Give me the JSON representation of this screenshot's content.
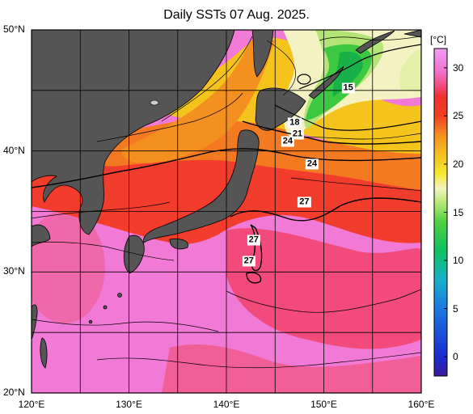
{
  "title": "Daily SSTs 07 Aug. 2025.",
  "map": {
    "lat_range": [
      20,
      50
    ],
    "lon_range": [
      120,
      160
    ],
    "lat_labels": [
      {
        "lat": 50,
        "text": "50°N"
      },
      {
        "lat": 40,
        "text": "40°N"
      },
      {
        "lat": 30,
        "text": "30°N"
      },
      {
        "lat": 20,
        "text": "20°N"
      }
    ],
    "lon_labels": [
      {
        "lon": 120,
        "text": "120°E"
      },
      {
        "lon": 130,
        "text": "130°E"
      },
      {
        "lon": 140,
        "text": "140°E"
      },
      {
        "lon": 150,
        "text": "150°E"
      },
      {
        "lon": 160,
        "text": "160°E"
      }
    ],
    "land_color": "#555555",
    "contour_labels": [
      {
        "text": "15",
        "lon": 152.5,
        "lat": 45.2
      },
      {
        "text": "18",
        "lon": 147.0,
        "lat": 42.3
      },
      {
        "text": "21",
        "lon": 147.3,
        "lat": 41.4
      },
      {
        "text": "24",
        "lon": 146.3,
        "lat": 40.8
      },
      {
        "text": "24",
        "lon": 148.8,
        "lat": 38.9
      },
      {
        "text": "27",
        "lon": 148.0,
        "lat": 35.8
      },
      {
        "text": "27",
        "lon": 142.8,
        "lat": 32.6
      },
      {
        "text": "27",
        "lon": 142.3,
        "lat": 30.9
      }
    ]
  },
  "colorbar": {
    "unit": "[°C]",
    "min": -2,
    "max": 32,
    "ticks": [
      {
        "value": 30,
        "text": "30"
      },
      {
        "value": 25,
        "text": "25"
      },
      {
        "value": 20,
        "text": "20"
      },
      {
        "value": 15,
        "text": "15"
      },
      {
        "value": 10,
        "text": "10"
      },
      {
        "value": 5,
        "text": "5"
      },
      {
        "value": 0,
        "text": "0"
      }
    ],
    "stops": [
      {
        "value": -2,
        "color": "#3a1a9a"
      },
      {
        "value": 0,
        "color": "#1a2ad0"
      },
      {
        "value": 5,
        "color": "#1a7ae0"
      },
      {
        "value": 8,
        "color": "#18b0c8"
      },
      {
        "value": 11,
        "color": "#10c060"
      },
      {
        "value": 14,
        "color": "#50d040"
      },
      {
        "value": 16,
        "color": "#b8e878"
      },
      {
        "value": 17.5,
        "color": "#f4f4c0"
      },
      {
        "value": 19,
        "color": "#f4e830"
      },
      {
        "value": 21,
        "color": "#f4c020"
      },
      {
        "value": 23,
        "color": "#f49020"
      },
      {
        "value": 25,
        "color": "#f04020"
      },
      {
        "value": 27,
        "color": "#f03030"
      },
      {
        "value": 28,
        "color": "#f04878"
      },
      {
        "value": 29.5,
        "color": "#f070c8"
      },
      {
        "value": 31,
        "color": "#f08ae8"
      },
      {
        "value": 32,
        "color": "#f0a0f0"
      }
    ]
  }
}
